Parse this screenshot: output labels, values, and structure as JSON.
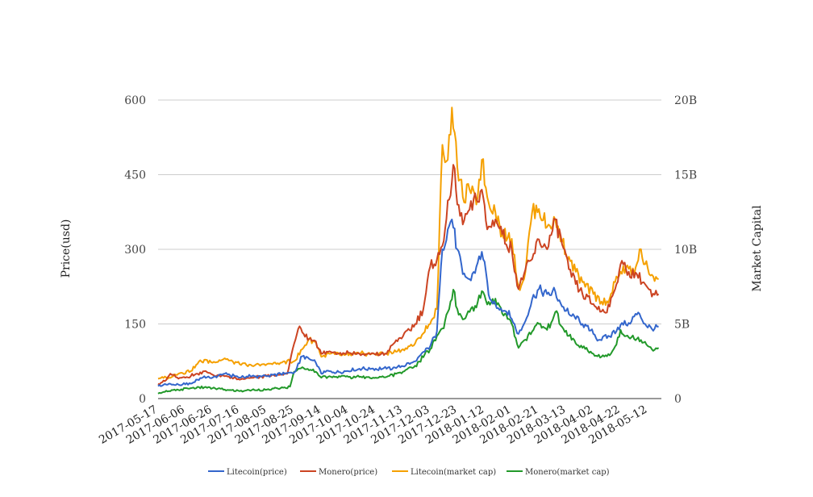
{
  "chart_data": {
    "type": "line",
    "ylabel": "Price(usd)",
    "y2label": "Market Capital",
    "ylim": [
      0,
      600
    ],
    "y2lim": [
      0,
      20000000000
    ],
    "yticks": [
      "0",
      "150",
      "300",
      "450",
      "600"
    ],
    "y2ticks": [
      "0",
      "5B",
      "10B",
      "15B",
      "20B"
    ],
    "xlim": [
      "2017-05-17",
      "2018-05-22"
    ],
    "xticks": [
      "2017-05-17",
      "2017-06-06",
      "2017-06-26",
      "2017-07-16",
      "2017-08-05",
      "2017-08-25",
      "2017-09-14",
      "2017-10-04",
      "2017-10-24",
      "2017-11-13",
      "2017-12-03",
      "2017-12-23",
      "2018-01-12",
      "2018-02-01",
      "2018-02-21",
      "2018-03-13",
      "2018-04-02",
      "2018-04-22",
      "2018-05-12"
    ],
    "grid": true,
    "legend_position": "bottom",
    "series": [
      {
        "name": "Litecoin(price)",
        "axis": "left",
        "color": "#3366cc",
        "points": [
          [
            "2017-05-17",
            25
          ],
          [
            "2017-05-25",
            30
          ],
          [
            "2017-06-01",
            28
          ],
          [
            "2017-06-10",
            30
          ],
          [
            "2017-06-20",
            45
          ],
          [
            "2017-06-26",
            42
          ],
          [
            "2017-07-05",
            50
          ],
          [
            "2017-07-16",
            42
          ],
          [
            "2017-07-25",
            45
          ],
          [
            "2017-08-05",
            45
          ],
          [
            "2017-08-15",
            50
          ],
          [
            "2017-08-25",
            52
          ],
          [
            "2017-08-31",
            85
          ],
          [
            "2017-09-05",
            80
          ],
          [
            "2017-09-10",
            72
          ],
          [
            "2017-09-14",
            50
          ],
          [
            "2017-09-20",
            55
          ],
          [
            "2017-09-25",
            52
          ],
          [
            "2017-10-04",
            55
          ],
          [
            "2017-10-12",
            60
          ],
          [
            "2017-10-24",
            60
          ],
          [
            "2017-11-01",
            60
          ],
          [
            "2017-11-13",
            65
          ],
          [
            "2017-11-22",
            75
          ],
          [
            "2017-12-03",
            105
          ],
          [
            "2017-12-08",
            135
          ],
          [
            "2017-12-12",
            300
          ],
          [
            "2017-12-16",
            340
          ],
          [
            "2017-12-19",
            360
          ],
          [
            "2017-12-23",
            300
          ],
          [
            "2017-12-27",
            250
          ],
          [
            "2018-01-01",
            240
          ],
          [
            "2018-01-06",
            265
          ],
          [
            "2018-01-10",
            295
          ],
          [
            "2018-01-16",
            200
          ],
          [
            "2018-01-20",
            190
          ],
          [
            "2018-01-28",
            175
          ],
          [
            "2018-02-01",
            160
          ],
          [
            "2018-02-06",
            130
          ],
          [
            "2018-02-10",
            150
          ],
          [
            "2018-02-16",
            200
          ],
          [
            "2018-02-21",
            220
          ],
          [
            "2018-02-27",
            210
          ],
          [
            "2018-03-05",
            215
          ],
          [
            "2018-03-10",
            185
          ],
          [
            "2018-03-15",
            170
          ],
          [
            "2018-03-20",
            160
          ],
          [
            "2018-03-25",
            150
          ],
          [
            "2018-04-02",
            130
          ],
          [
            "2018-04-06",
            118
          ],
          [
            "2018-04-14",
            125
          ],
          [
            "2018-04-22",
            148
          ],
          [
            "2018-04-28",
            152
          ],
          [
            "2018-05-02",
            165
          ],
          [
            "2018-05-06",
            170
          ],
          [
            "2018-05-10",
            150
          ],
          [
            "2018-05-15",
            140
          ],
          [
            "2018-05-20",
            145
          ]
        ]
      },
      {
        "name": "Monero(price)",
        "axis": "left",
        "color": "#cc4422",
        "points": [
          [
            "2017-05-17",
            30
          ],
          [
            "2017-05-22",
            35
          ],
          [
            "2017-05-26",
            50
          ],
          [
            "2017-06-01",
            40
          ],
          [
            "2017-06-06",
            42
          ],
          [
            "2017-06-15",
            50
          ],
          [
            "2017-06-20",
            55
          ],
          [
            "2017-06-26",
            48
          ],
          [
            "2017-07-05",
            45
          ],
          [
            "2017-07-16",
            38
          ],
          [
            "2017-07-25",
            42
          ],
          [
            "2017-08-05",
            45
          ],
          [
            "2017-08-15",
            48
          ],
          [
            "2017-08-20",
            50
          ],
          [
            "2017-08-25",
            110
          ],
          [
            "2017-08-28",
            140
          ],
          [
            "2017-09-01",
            130
          ],
          [
            "2017-09-05",
            120
          ],
          [
            "2017-09-10",
            115
          ],
          [
            "2017-09-14",
            90
          ],
          [
            "2017-09-20",
            95
          ],
          [
            "2017-09-28",
            92
          ],
          [
            "2017-10-04",
            92
          ],
          [
            "2017-10-12",
            90
          ],
          [
            "2017-10-24",
            88
          ],
          [
            "2017-11-01",
            90
          ],
          [
            "2017-11-06",
            110
          ],
          [
            "2017-11-13",
            125
          ],
          [
            "2017-11-22",
            150
          ],
          [
            "2017-11-28",
            180
          ],
          [
            "2017-12-03",
            265
          ],
          [
            "2017-12-06",
            270
          ],
          [
            "2017-12-10",
            290
          ],
          [
            "2017-12-14",
            340
          ],
          [
            "2017-12-17",
            400
          ],
          [
            "2017-12-20",
            470
          ],
          [
            "2017-12-23",
            390
          ],
          [
            "2017-12-27",
            350
          ],
          [
            "2018-01-01",
            380
          ],
          [
            "2018-01-06",
            400
          ],
          [
            "2018-01-10",
            420
          ],
          [
            "2018-01-14",
            340
          ],
          [
            "2018-01-20",
            360
          ],
          [
            "2018-01-25",
            330
          ],
          [
            "2018-02-01",
            300
          ],
          [
            "2018-02-06",
            220
          ],
          [
            "2018-02-10",
            250
          ],
          [
            "2018-02-16",
            280
          ],
          [
            "2018-02-21",
            320
          ],
          [
            "2018-02-27",
            300
          ],
          [
            "2018-03-05",
            360
          ],
          [
            "2018-03-10",
            310
          ],
          [
            "2018-03-15",
            260
          ],
          [
            "2018-03-20",
            230
          ],
          [
            "2018-03-25",
            210
          ],
          [
            "2018-04-02",
            190
          ],
          [
            "2018-04-08",
            175
          ],
          [
            "2018-04-14",
            185
          ],
          [
            "2018-04-18",
            220
          ],
          [
            "2018-04-22",
            270
          ],
          [
            "2018-04-28",
            255
          ],
          [
            "2018-05-04",
            250
          ],
          [
            "2018-05-10",
            230
          ],
          [
            "2018-05-15",
            205
          ],
          [
            "2018-05-20",
            210
          ]
        ]
      },
      {
        "name": "Litecoin(market cap)",
        "axis": "right",
        "color": "#f5a000",
        "points": [
          [
            "2017-05-17",
            1330000000
          ],
          [
            "2017-05-25",
            1400000000
          ],
          [
            "2017-06-01",
            1670000000
          ],
          [
            "2017-06-10",
            1830000000
          ],
          [
            "2017-06-15",
            2330000000
          ],
          [
            "2017-06-20",
            2600000000
          ],
          [
            "2017-06-26",
            2400000000
          ],
          [
            "2017-07-05",
            2700000000
          ],
          [
            "2017-07-16",
            2300000000
          ],
          [
            "2017-07-25",
            2200000000
          ],
          [
            "2017-08-05",
            2300000000
          ],
          [
            "2017-08-15",
            2400000000
          ],
          [
            "2017-08-25",
            2500000000
          ],
          [
            "2017-08-31",
            3300000000
          ],
          [
            "2017-09-05",
            4000000000
          ],
          [
            "2017-09-10",
            3800000000
          ],
          [
            "2017-09-14",
            2800000000
          ],
          [
            "2017-09-20",
            3000000000
          ],
          [
            "2017-10-04",
            2900000000
          ],
          [
            "2017-10-12",
            3000000000
          ],
          [
            "2017-10-24",
            3000000000
          ],
          [
            "2017-11-01",
            3000000000
          ],
          [
            "2017-11-13",
            3300000000
          ],
          [
            "2017-11-22",
            3700000000
          ],
          [
            "2017-12-03",
            5000000000
          ],
          [
            "2017-12-08",
            6000000000
          ],
          [
            "2017-12-12",
            17000000000
          ],
          [
            "2017-12-16",
            16000000000
          ],
          [
            "2017-12-19",
            19500000000
          ],
          [
            "2017-12-23",
            15500000000
          ],
          [
            "2017-12-27",
            13500000000
          ],
          [
            "2018-01-01",
            14000000000
          ],
          [
            "2018-01-06",
            13000000000
          ],
          [
            "2018-01-10",
            16000000000
          ],
          [
            "2018-01-14",
            13500000000
          ],
          [
            "2018-01-20",
            12500000000
          ],
          [
            "2018-01-25",
            11000000000
          ],
          [
            "2018-02-01",
            10700000000
          ],
          [
            "2018-02-06",
            7500000000
          ],
          [
            "2018-02-10",
            8000000000
          ],
          [
            "2018-02-16",
            12500000000
          ],
          [
            "2018-02-21",
            12700000000
          ],
          [
            "2018-02-27",
            11500000000
          ],
          [
            "2018-03-05",
            12000000000
          ],
          [
            "2018-03-10",
            10500000000
          ],
          [
            "2018-03-15",
            9500000000
          ],
          [
            "2018-03-20",
            8500000000
          ],
          [
            "2018-03-25",
            7800000000
          ],
          [
            "2018-04-02",
            7000000000
          ],
          [
            "2018-04-08",
            6500000000
          ],
          [
            "2018-04-14",
            6700000000
          ],
          [
            "2018-04-18",
            7800000000
          ],
          [
            "2018-04-22",
            8500000000
          ],
          [
            "2018-04-28",
            8700000000
          ],
          [
            "2018-05-02",
            8300000000
          ],
          [
            "2018-05-06",
            10000000000
          ],
          [
            "2018-05-10",
            9000000000
          ],
          [
            "2018-05-15",
            8300000000
          ],
          [
            "2018-05-20",
            8000000000
          ]
        ]
      },
      {
        "name": "Monero(market cap)",
        "axis": "right",
        "color": "#22992a",
        "points": [
          [
            "2017-05-17",
            330000000
          ],
          [
            "2017-05-25",
            500000000
          ],
          [
            "2017-06-01",
            580000000
          ],
          [
            "2017-06-10",
            700000000
          ],
          [
            "2017-06-20",
            750000000
          ],
          [
            "2017-06-26",
            700000000
          ],
          [
            "2017-07-05",
            600000000
          ],
          [
            "2017-07-16",
            500000000
          ],
          [
            "2017-07-25",
            580000000
          ],
          [
            "2017-08-05",
            600000000
          ],
          [
            "2017-08-15",
            700000000
          ],
          [
            "2017-08-22",
            800000000
          ],
          [
            "2017-08-25",
            1800000000
          ],
          [
            "2017-08-31",
            2100000000
          ],
          [
            "2017-09-05",
            1900000000
          ],
          [
            "2017-09-10",
            1800000000
          ],
          [
            "2017-09-14",
            1400000000
          ],
          [
            "2017-09-20",
            1500000000
          ],
          [
            "2017-10-04",
            1450000000
          ],
          [
            "2017-10-12",
            1450000000
          ],
          [
            "2017-10-24",
            1400000000
          ],
          [
            "2017-11-01",
            1450000000
          ],
          [
            "2017-11-13",
            1800000000
          ],
          [
            "2017-11-22",
            2200000000
          ],
          [
            "2017-12-03",
            3300000000
          ],
          [
            "2017-12-08",
            4200000000
          ],
          [
            "2017-12-12",
            4700000000
          ],
          [
            "2017-12-16",
            5800000000
          ],
          [
            "2017-12-20",
            7300000000
          ],
          [
            "2017-12-23",
            6000000000
          ],
          [
            "2017-12-27",
            5300000000
          ],
          [
            "2018-01-01",
            5800000000
          ],
          [
            "2018-01-06",
            6100000000
          ],
          [
            "2018-01-10",
            7200000000
          ],
          [
            "2018-01-14",
            6300000000
          ],
          [
            "2018-01-20",
            6700000000
          ],
          [
            "2018-01-25",
            5700000000
          ],
          [
            "2018-02-01",
            5000000000
          ],
          [
            "2018-02-06",
            3400000000
          ],
          [
            "2018-02-10",
            3900000000
          ],
          [
            "2018-02-16",
            4500000000
          ],
          [
            "2018-02-21",
            5000000000
          ],
          [
            "2018-02-27",
            4600000000
          ],
          [
            "2018-03-05",
            5800000000
          ],
          [
            "2018-03-10",
            4800000000
          ],
          [
            "2018-03-15",
            4200000000
          ],
          [
            "2018-03-20",
            3700000000
          ],
          [
            "2018-03-25",
            3400000000
          ],
          [
            "2018-04-02",
            3000000000
          ],
          [
            "2018-04-08",
            2800000000
          ],
          [
            "2018-04-14",
            2900000000
          ],
          [
            "2018-04-18",
            3500000000
          ],
          [
            "2018-04-22",
            4600000000
          ],
          [
            "2018-04-28",
            4100000000
          ],
          [
            "2018-05-04",
            4000000000
          ],
          [
            "2018-05-10",
            3800000000
          ],
          [
            "2018-05-15",
            3300000000
          ],
          [
            "2018-05-20",
            3400000000
          ]
        ]
      }
    ]
  }
}
